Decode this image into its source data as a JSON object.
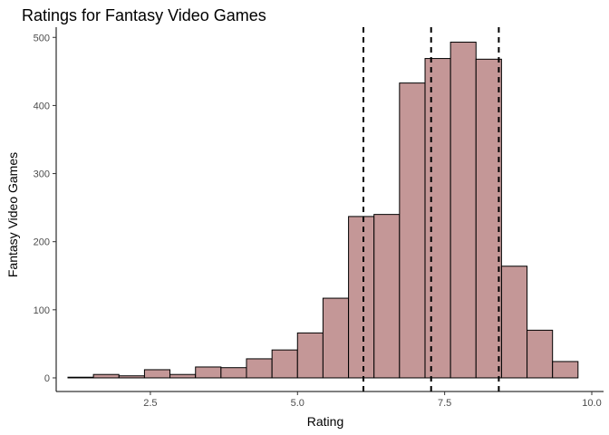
{
  "chart_data": {
    "type": "bar",
    "title": "Ratings for Fantasy Video Games",
    "xlabel": "Rating",
    "ylabel": "Fantasy Video Games",
    "xlim": [
      0.9,
      10.2
    ],
    "ylim": [
      -20,
      515
    ],
    "x_ticks": [
      2.5,
      5.0,
      7.5,
      10.0
    ],
    "x_tick_labels": [
      "2.5",
      "5.0",
      "7.5",
      "10.0"
    ],
    "y_ticks": [
      0,
      100,
      200,
      300,
      400,
      500
    ],
    "y_tick_labels": [
      "0",
      "100",
      "200",
      "300",
      "400",
      "500"
    ],
    "bin_width": 0.433,
    "bins": [
      {
        "x0": 1.1,
        "count": 1
      },
      {
        "x0": 1.533,
        "count": 5
      },
      {
        "x0": 1.967,
        "count": 3
      },
      {
        "x0": 2.4,
        "count": 12
      },
      {
        "x0": 2.833,
        "count": 5
      },
      {
        "x0": 3.267,
        "count": 16
      },
      {
        "x0": 3.7,
        "count": 15
      },
      {
        "x0": 4.133,
        "count": 28
      },
      {
        "x0": 4.567,
        "count": 41
      },
      {
        "x0": 5.0,
        "count": 66
      },
      {
        "x0": 5.433,
        "count": 117
      },
      {
        "x0": 5.867,
        "count": 237
      },
      {
        "x0": 6.3,
        "count": 240
      },
      {
        "x0": 6.733,
        "count": 433
      },
      {
        "x0": 7.167,
        "count": 469
      },
      {
        "x0": 7.6,
        "count": 493
      },
      {
        "x0": 8.033,
        "count": 468
      },
      {
        "x0": 8.467,
        "count": 164
      },
      {
        "x0": 8.9,
        "count": 70
      },
      {
        "x0": 9.333,
        "count": 24
      }
    ],
    "vertical_lines": [
      6.12,
      7.27,
      8.42
    ],
    "grid": false,
    "bar_color": "#c49797"
  }
}
